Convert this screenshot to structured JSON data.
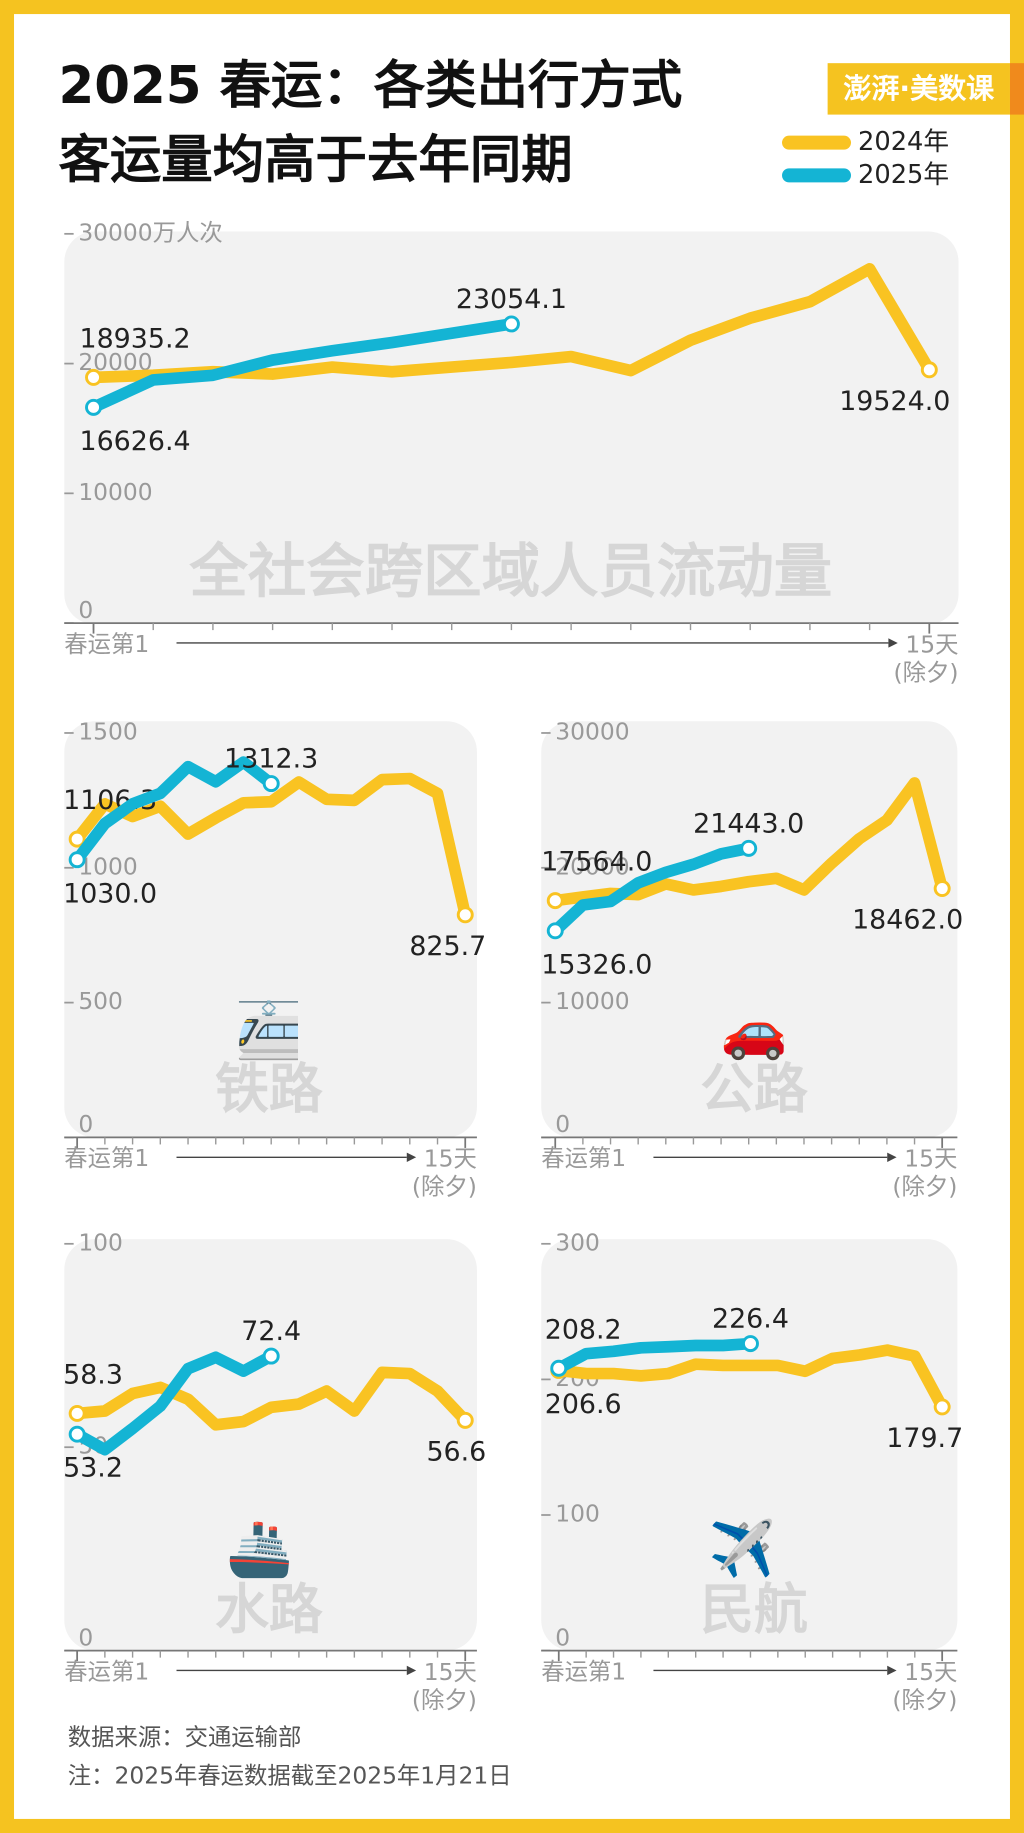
{
  "header": {
    "title": [
      "2025 春运：各类出行方式",
      "客运量均高于去年同期"
    ],
    "brand": "澎湃·美数课"
  },
  "footer": {
    "source": "数据来源：交通运输部",
    "note": "注：2025年春运数据截至2025年1月21日"
  },
  "chart_data": [
    {
      "type": "line",
      "title": "全社会跨区域人员流动量",
      "x": [
        1,
        2,
        3,
        4,
        5,
        6,
        7,
        8,
        9,
        10,
        11,
        12,
        13,
        14,
        15
      ],
      "xlim": [
        1,
        15
      ],
      "xticks": [
        {
          "value": 1,
          "label": "春运第1"
        },
        {
          "value": 15,
          "label": "15天(除夕)"
        }
      ],
      "ylim": [
        0,
        30000
      ],
      "yticks": [
        0,
        10000,
        20000,
        {
          "value": 30000,
          "label": "30000万人次"
        }
      ],
      "series": [
        {
          "name": "2024年",
          "color": "#F9C322",
          "values": [
            18935.2,
            19100,
            19370,
            19190,
            19730,
            19370,
            19730,
            20090,
            20540,
            19460,
            21800,
            23500,
            24770,
            27300,
            19524.0
          ],
          "value_labels": [
            "18935.2",
            null,
            null,
            null,
            null,
            null,
            null,
            null,
            null,
            null,
            null,
            null,
            null,
            null,
            "19524.0"
          ]
        },
        {
          "name": "2025年",
          "color": "#14B4D4",
          "values": [
            16626.4,
            18740,
            19100,
            20270,
            20990,
            21620,
            22340,
            23054.1,
            null,
            null,
            null,
            null,
            null,
            null,
            null
          ],
          "value_labels": [
            "16626.4",
            null,
            null,
            null,
            null,
            null,
            null,
            "23054.1",
            null,
            null,
            null,
            null,
            null,
            null,
            null
          ]
        }
      ]
    },
    {
      "type": "line",
      "title": "铁路",
      "icon": "🚈",
      "x": [
        1,
        2,
        3,
        4,
        5,
        6,
        7,
        8,
        9,
        10,
        11,
        12,
        13,
        14,
        15
      ],
      "xlim": [
        1,
        15
      ],
      "xticks": [
        {
          "value": 1,
          "label": "春运第1"
        },
        {
          "value": 15,
          "label": "15天(除夕)"
        }
      ],
      "ylim": [
        0,
        1500
      ],
      "yticks": [
        0,
        500,
        1000,
        1500
      ],
      "series": [
        {
          "color": "#F9C322",
          "values": [
            1106.3,
            1237,
            1190,
            1228,
            1125,
            1185,
            1241,
            1245,
            1318,
            1254,
            1250,
            1327,
            1331,
            1276,
            825.7
          ],
          "value_labels": [
            "1106.3",
            null,
            null,
            null,
            null,
            null,
            null,
            null,
            null,
            null,
            null,
            null,
            null,
            null,
            "825.7"
          ]
        },
        {
          "color": "#14B4D4",
          "values": [
            1030.0,
            1164,
            1237,
            1276,
            1375,
            1319,
            1392,
            1312.3,
            null,
            null,
            null,
            null,
            null,
            null,
            null
          ],
          "value_labels": [
            "1030.0",
            null,
            null,
            null,
            null,
            null,
            null,
            "1312.3",
            null,
            null,
            null,
            null,
            null,
            null,
            null
          ]
        }
      ]
    },
    {
      "type": "line",
      "title": "公路",
      "icon": "🚗",
      "x": [
        1,
        2,
        3,
        4,
        5,
        6,
        7,
        8,
        9,
        10,
        11,
        12,
        13,
        14,
        15
      ],
      "xlim": [
        1,
        15
      ],
      "xticks": [
        {
          "value": 1,
          "label": "春运第1"
        },
        {
          "value": 15,
          "label": "15天(除夕)"
        }
      ],
      "ylim": [
        0,
        30000
      ],
      "yticks": [
        0,
        10000,
        20000,
        30000
      ],
      "series": [
        {
          "color": "#F9C322",
          "values": [
            17564.0,
            17840,
            18100,
            18010,
            18800,
            18360,
            18620,
            18970,
            19220,
            18360,
            20340,
            22150,
            23530,
            26290,
            18462.0
          ],
          "value_labels": [
            "17564.0",
            null,
            null,
            null,
            null,
            null,
            null,
            null,
            null,
            null,
            null,
            null,
            null,
            null,
            "18462.0"
          ]
        },
        {
          "color": "#14B4D4",
          "values": [
            15326.0,
            17240,
            17500,
            18880,
            19660,
            20260,
            21030,
            21443.0,
            null,
            null,
            null,
            null,
            null,
            null,
            null
          ],
          "value_labels": [
            "15326.0",
            null,
            null,
            null,
            null,
            null,
            null,
            "21443.0",
            null,
            null,
            null,
            null,
            null,
            null,
            null
          ]
        }
      ]
    },
    {
      "type": "line",
      "title": "水路",
      "icon": "🚢",
      "x": [
        1,
        2,
        3,
        4,
        5,
        6,
        7,
        8,
        9,
        10,
        11,
        12,
        13,
        14,
        15
      ],
      "xlim": [
        1,
        15
      ],
      "xticks": [
        {
          "value": 1,
          "label": "春运第1"
        },
        {
          "value": 15,
          "label": "15天(除夕)"
        }
      ],
      "ylim": [
        0,
        100
      ],
      "yticks": [
        0,
        50,
        100
      ],
      "series": [
        {
          "color": "#F9C322",
          "values": [
            58.3,
            58.9,
            63.2,
            64.7,
            61.8,
            55.5,
            56.3,
            59.8,
            60.6,
            63.8,
            58.9,
            68.4,
            68.1,
            63.8,
            56.6
          ],
          "value_labels": null
        },
        {
          "color": "#14B4D4",
          "values": [
            53.2,
            49.4,
            54.6,
            60.1,
            69.3,
            72.1,
            68.7,
            72.4,
            null,
            null,
            null,
            null,
            null,
            null,
            null
          ],
          "value_labels": null
        }
      ]
    },
    {
      "type": "line",
      "title": "民航",
      "icon": "✈️",
      "x": [
        1,
        2,
        3,
        4,
        5,
        6,
        7,
        8,
        9,
        10,
        11,
        12,
        13,
        14,
        15
      ],
      "xlim": [
        1,
        15
      ],
      "xticks": [
        {
          "value": 1,
          "label": "春运第1"
        },
        {
          "value": 15,
          "label": "15天(除夕)"
        }
      ],
      "ylim": [
        0,
        300
      ],
      "yticks": [
        0,
        100,
        200,
        300
      ],
      "series": [
        {
          "color": "#F9C322",
          "values": [
            206.6,
            204.3,
            204.3,
            202.6,
            204.3,
            211.2,
            210.3,
            210.3,
            210.3,
            206.0,
            215.5,
            218.1,
            221.6,
            217.2,
            179.7
          ],
          "value_labels": null
        },
        {
          "color": "#14B4D4",
          "values": [
            208.2,
            219,
            220.7,
            223.3,
            224.1,
            225,
            225,
            226.4,
            null,
            null,
            null,
            null,
            null,
            null,
            null
          ],
          "value_labels": null
        }
      ]
    }
  ]
}
